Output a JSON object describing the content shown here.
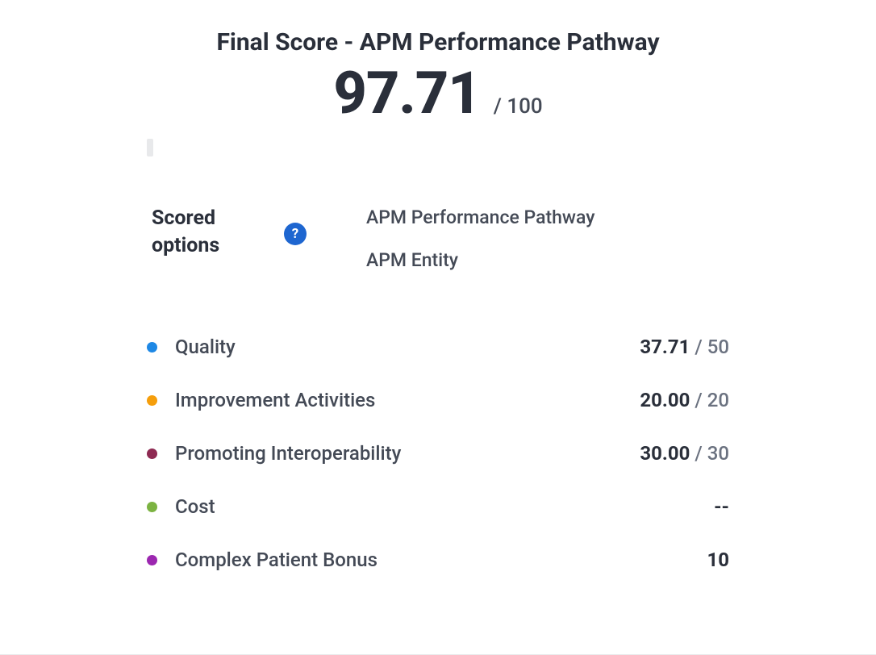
{
  "title": "Final Score - APM Performance Pathway",
  "score": {
    "value": "97.71",
    "max_label": "/ 100"
  },
  "scored_options": {
    "label": "Scored options",
    "items": [
      {
        "label": "APM Performance Pathway"
      },
      {
        "label": "APM Entity"
      }
    ]
  },
  "categories": [
    {
      "name": "Quality",
      "dot_color": "#1E88E5",
      "value": "37.71",
      "max": "50",
      "show_max": true,
      "plain": null
    },
    {
      "name": "Improvement Activities",
      "dot_color": "#F59E0B",
      "value": "20.00",
      "max": "20",
      "show_max": true,
      "plain": null
    },
    {
      "name": "Promoting Interoperability",
      "dot_color": "#8E2A52",
      "value": "30.00",
      "max": "30",
      "show_max": true,
      "plain": null
    },
    {
      "name": "Cost",
      "dot_color": "#7CB342",
      "value": null,
      "max": null,
      "show_max": false,
      "plain": "--"
    },
    {
      "name": "Complex Patient Bonus",
      "dot_color": "#9C27B0",
      "value": null,
      "max": null,
      "show_max": false,
      "plain": "10"
    }
  ],
  "colors": {
    "text_dark": "#2a2f3a",
    "text_mid": "#444a56",
    "text_muted": "#6b7280",
    "help_blue": "#1e66d0",
    "tiny_bar": "#e8e9eb",
    "divider": "#e9eaec"
  }
}
